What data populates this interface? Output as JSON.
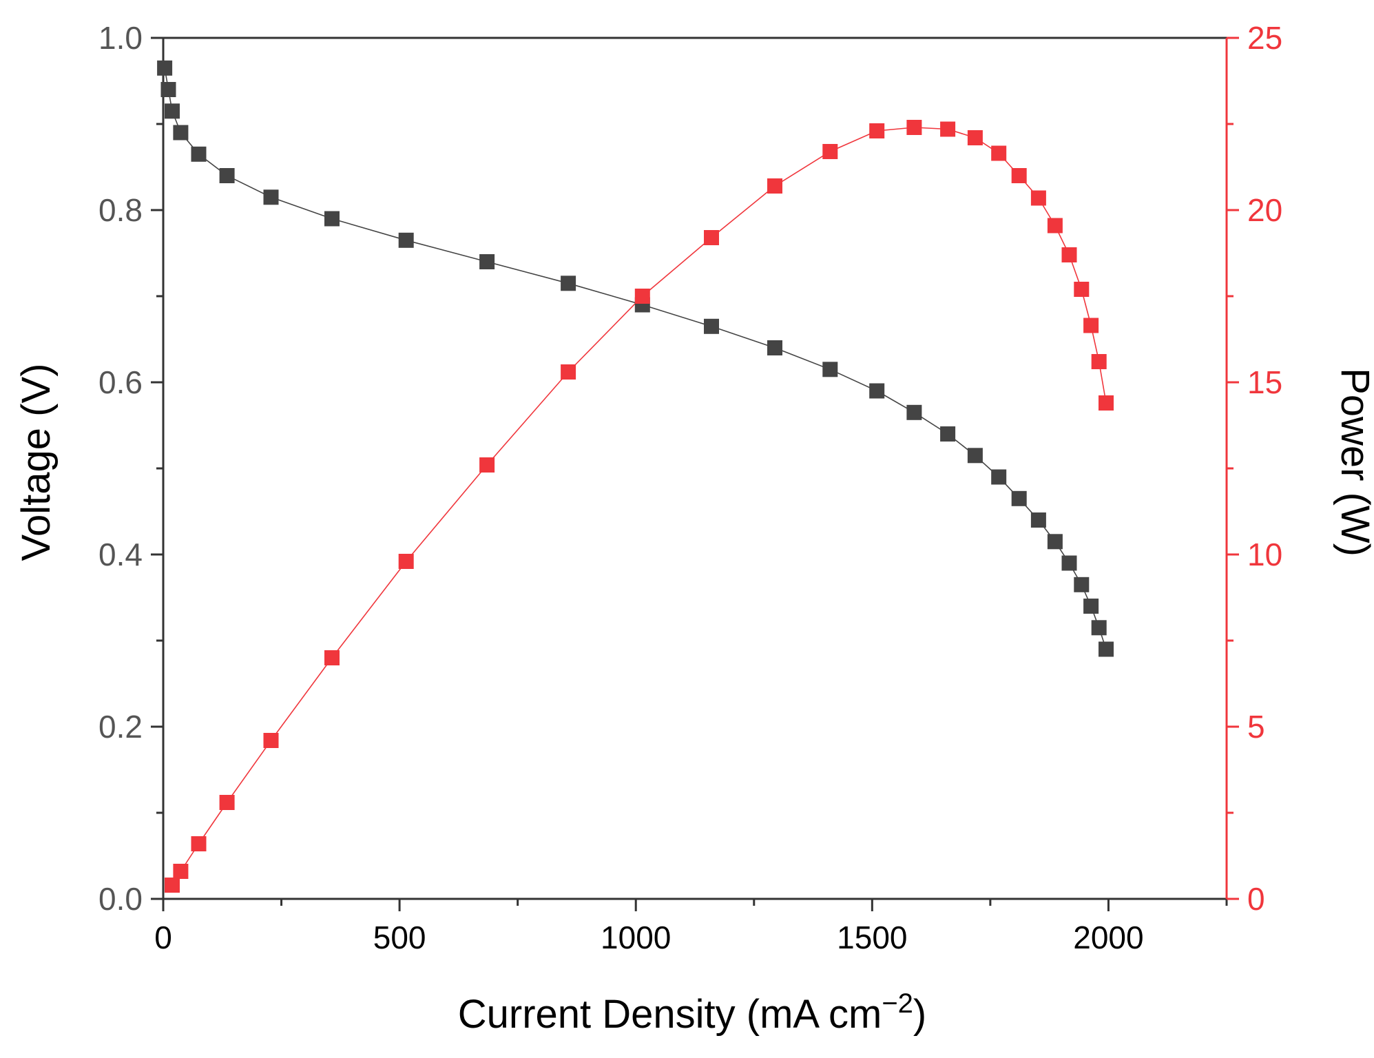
{
  "chart_data": {
    "type": "scatter",
    "xlabel": "Current Density (mA cm",
    "xlabel_sup": "−2",
    "xlabel_end": ")",
    "ylabel_left": "Voltage (V)",
    "ylabel_right": "Power (W)",
    "xlim": [
      0,
      2250
    ],
    "ylim_left": [
      0,
      1.0
    ],
    "ylim_right": [
      0,
      25
    ],
    "x_ticks": [
      0,
      500,
      1000,
      1500,
      2000
    ],
    "x_tick_labels": [
      "0",
      "500",
      "1000",
      "1500",
      "2000"
    ],
    "y_left_ticks": [
      0.0,
      0.2,
      0.4,
      0.6,
      0.8,
      1.0
    ],
    "y_left_tick_labels": [
      "0.0",
      "0.2",
      "0.4",
      "0.6",
      "0.8",
      "1.0"
    ],
    "y_right_ticks": [
      0,
      5,
      10,
      15,
      20,
      25
    ],
    "y_right_tick_labels": [
      "0",
      "5",
      "10",
      "15",
      "20",
      "25"
    ],
    "colors": {
      "voltage": "#444444",
      "power": "#f0363c",
      "axis_left": "#333333",
      "axis_right": "#f0363c"
    },
    "series": [
      {
        "name": "Voltage",
        "axis": "left",
        "color": "#444444",
        "x": [
          3,
          11,
          19,
          37,
          75,
          135,
          228,
          357,
          514,
          685,
          857,
          1014,
          1160,
          1294,
          1411,
          1510,
          1589,
          1660,
          1718,
          1768,
          1811,
          1852,
          1887,
          1917,
          1943,
          1963,
          1980,
          1995
        ],
        "y": [
          0.965,
          0.94,
          0.915,
          0.89,
          0.865,
          0.84,
          0.815,
          0.79,
          0.765,
          0.74,
          0.715,
          0.69,
          0.665,
          0.64,
          0.615,
          0.59,
          0.565,
          0.54,
          0.515,
          0.49,
          0.465,
          0.44,
          0.415,
          0.39,
          0.365,
          0.34,
          0.315,
          0.29
        ]
      },
      {
        "name": "Power",
        "axis": "right",
        "color": "#f0363c",
        "x": [
          19,
          37,
          75,
          135,
          228,
          357,
          514,
          685,
          857,
          1014,
          1160,
          1294,
          1411,
          1510,
          1589,
          1660,
          1718,
          1768,
          1811,
          1852,
          1887,
          1917,
          1943,
          1963,
          1980,
          1995
        ],
        "y": [
          0.4,
          0.8,
          1.6,
          2.8,
          4.6,
          7.0,
          9.8,
          12.6,
          15.3,
          17.5,
          19.2,
          20.7,
          21.7,
          22.3,
          22.4,
          22.35,
          22.1,
          21.65,
          21.0,
          20.35,
          19.55,
          18.7,
          17.7,
          16.65,
          15.6,
          14.4
        ]
      }
    ]
  }
}
